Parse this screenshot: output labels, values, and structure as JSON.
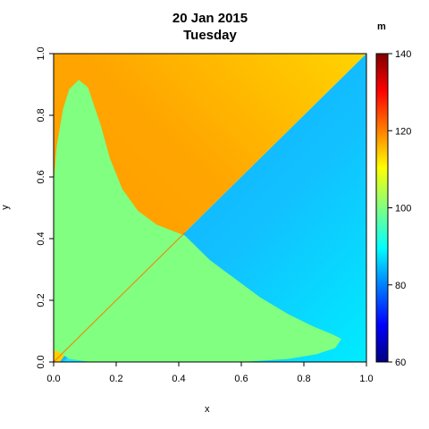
{
  "chart_data": {
    "type": "heatmap",
    "title": "20 Jan 2015",
    "subtitle": "Tuesday",
    "xlabel": "x",
    "ylabel": "y",
    "xlim": [
      0.0,
      1.0
    ],
    "ylim": [
      0.0,
      1.0
    ],
    "x_ticks": [
      "0.0",
      "0.2",
      "0.4",
      "0.6",
      "0.8",
      "1.0"
    ],
    "y_ticks": [
      "0.0",
      "0.2",
      "0.4",
      "0.6",
      "0.8",
      "1.0"
    ],
    "colorbar": {
      "unit_label": "m",
      "range": [
        60,
        140
      ],
      "ticks": [
        "60",
        "80",
        "100",
        "120",
        "140"
      ],
      "colors": [
        "#000080",
        "#0000ff",
        "#0080ff",
        "#00ffff",
        "#80ff80",
        "#ffff00",
        "#ff8000",
        "#ff0000",
        "#800000"
      ]
    },
    "regions": [
      {
        "name": "upper-left",
        "value": 118,
        "color": "#ffa500",
        "color_light": "#ffd700"
      },
      {
        "name": "lower-right",
        "value": 88,
        "color": "#10bfff",
        "color_light": "#00f0ff"
      },
      {
        "name": "lobe",
        "value": 100,
        "color": "#80ff80"
      }
    ],
    "lobe_boundary": [
      [
        0.0,
        0.58
      ],
      [
        0.01,
        0.7
      ],
      [
        0.03,
        0.82
      ],
      [
        0.05,
        0.885
      ],
      [
        0.08,
        0.915
      ],
      [
        0.11,
        0.89
      ],
      [
        0.15,
        0.77
      ],
      [
        0.18,
        0.66
      ],
      [
        0.22,
        0.56
      ],
      [
        0.27,
        0.49
      ],
      [
        0.33,
        0.445
      ],
      [
        0.42,
        0.41
      ],
      [
        0.5,
        0.33
      ],
      [
        0.58,
        0.27
      ],
      [
        0.66,
        0.21
      ],
      [
        0.75,
        0.155
      ],
      [
        0.83,
        0.115
      ],
      [
        0.89,
        0.09
      ],
      [
        0.92,
        0.075
      ],
      [
        0.9,
        0.045
      ],
      [
        0.84,
        0.025
      ],
      [
        0.75,
        0.01
      ],
      [
        0.6,
        0.0
      ],
      [
        0.3,
        0.0
      ],
      [
        0.12,
        0.0
      ],
      [
        0.05,
        0.01
      ],
      [
        0.02,
        0.03
      ],
      [
        0.0,
        0.04
      ]
    ]
  }
}
